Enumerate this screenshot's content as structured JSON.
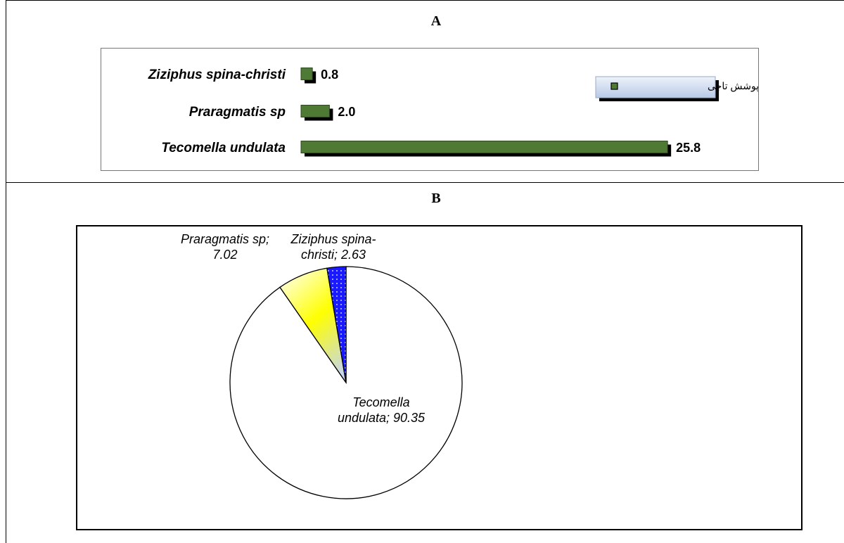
{
  "panels": {
    "a_title": "A",
    "b_title": "B"
  },
  "chart_data": [
    {
      "type": "bar",
      "orientation": "horizontal",
      "categories": [
        "Ziziphus spina-christi",
        "Praragmatis sp",
        "Tecomella undulata"
      ],
      "series": [
        {
          "name": "درصد پوشش تاجی",
          "values": [
            0.8,
            2.0,
            25.8
          ]
        }
      ],
      "value_labels": [
        "0.8",
        "2.0",
        "25.8"
      ],
      "legend": "top-right",
      "grid": false,
      "colors": {
        "bar": "#4f7a36",
        "shadow": "#000000"
      }
    },
    {
      "type": "pie",
      "slices": [
        {
          "label": "Tecomella undulata; 90.35",
          "value": 90.35,
          "label_lines": [
            "Tecomella",
            "undulata; 90.35"
          ],
          "color": "#ffffff"
        },
        {
          "label": "Praragmatis sp; 7.02",
          "value": 7.02,
          "label_lines": [
            "Praragmatis sp;",
            "7.02"
          ],
          "color": "#ffff00"
        },
        {
          "label": "Ziziphus spina-christi; 2.63",
          "value": 2.63,
          "label_lines": [
            "Ziziphus spina-",
            "christi; 2.63"
          ],
          "color": "#1a1aff"
        }
      ]
    }
  ]
}
